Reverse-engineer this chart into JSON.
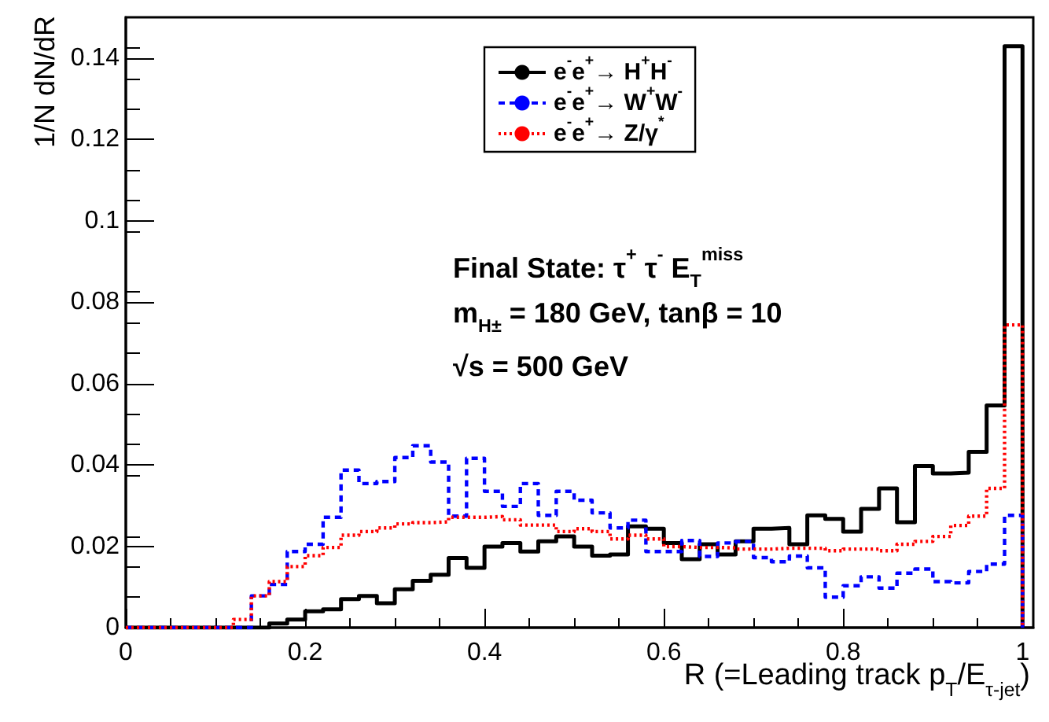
{
  "chart_data": {
    "type": "histogram",
    "xlabel": "R (=Leading track p$_{T}$/E$_{τ-jet}$)",
    "ylabel": "1/N dN/dR",
    "bins": [
      0,
      0.02,
      0.04,
      0.06,
      0.08,
      0.1,
      0.12,
      0.14,
      0.16,
      0.18,
      0.2,
      0.22,
      0.24,
      0.26,
      0.28,
      0.3,
      0.32,
      0.34,
      0.36,
      0.38,
      0.4,
      0.42,
      0.44,
      0.46,
      0.48,
      0.5,
      0.52,
      0.54,
      0.56,
      0.58,
      0.6,
      0.62,
      0.64,
      0.66,
      0.68,
      0.7,
      0.72,
      0.74,
      0.76,
      0.78,
      0.8,
      0.82,
      0.84,
      0.86,
      0.88,
      0.9,
      0.92,
      0.94,
      0.96,
      0.98,
      1
    ],
    "series": [
      {
        "name": "e$^{-}$e$^{+}$→ H$^{+}$H$^{-}$",
        "color": "#000000",
        "line_style": "solid",
        "values": [
          0,
          0,
          0,
          0,
          0,
          0,
          0,
          0,
          0.001,
          0.002,
          0.004,
          0.0045,
          0.007,
          0.0078,
          0.006,
          0.0094,
          0.0115,
          0.013,
          0.0171,
          0.0147,
          0.0199,
          0.0208,
          0.0187,
          0.0212,
          0.0224,
          0.0199,
          0.0177,
          0.018,
          0.0249,
          0.0243,
          0.0208,
          0.0168,
          0.0205,
          0.018,
          0.0212,
          0.0243,
          0.0245,
          0.0205,
          0.0276,
          0.0267,
          0.0236,
          0.0292,
          0.0342,
          0.0259,
          0.0397,
          0.0379,
          0.0381,
          0.0432,
          0.0546,
          0.1429
        ]
      },
      {
        "name": "e$^{-}$e$^{+}$→ W$^{+}$W$^{-}$",
        "color": "#0000ff",
        "line_style": "dashed",
        "values": [
          0,
          0,
          0,
          0,
          0,
          0,
          0,
          0.0078,
          0.0106,
          0.0187,
          0.0205,
          0.0271,
          0.0387,
          0.0354,
          0.0359,
          0.0418,
          0.0447,
          0.0407,
          0.0274,
          0.0416,
          0.0335,
          0.0298,
          0.0354,
          0.0276,
          0.0335,
          0.0313,
          0.0282,
          0.0245,
          0.0264,
          0.0187,
          0.0187,
          0.0214,
          0.0175,
          0.0208,
          0.0212,
          0.0172,
          0.0162,
          0.0176,
          0.0147,
          0.0075,
          0.0103,
          0.0125,
          0.0097,
          0.0134,
          0.0144,
          0.0113,
          0.011,
          0.0138,
          0.0156,
          0.0276
        ]
      },
      {
        "name": "e$^{-}$e$^{+}$→ Z/γ$^{*}$",
        "color": "#ff0000",
        "line_style": "dotted",
        "values": [
          0,
          0,
          0,
          0,
          0,
          0,
          0.002,
          0.0078,
          0.0113,
          0.015,
          0.0177,
          0.0197,
          0.0227,
          0.0236,
          0.0245,
          0.0255,
          0.0258,
          0.026,
          0.0271,
          0.0271,
          0.0273,
          0.0265,
          0.0252,
          0.0252,
          0.0236,
          0.0243,
          0.0236,
          0.0218,
          0.0227,
          0.0218,
          0.0199,
          0.0197,
          0.0197,
          0.0196,
          0.0193,
          0.0193,
          0.0195,
          0.0195,
          0.0195,
          0.0189,
          0.0193,
          0.0193,
          0.0189,
          0.0205,
          0.0212,
          0.0224,
          0.0251,
          0.0274,
          0.0342,
          0.0744
        ]
      }
    ],
    "annotations": [
      "Final State: τ$^{+}$ τ$^{-}$ E$_{T}$$^{miss}$",
      "m$_{H±}$ = 180 GeV, tanβ = 10",
      "√s = 500 GeV"
    ],
    "xlim": [
      0,
      1.012
    ],
    "xticks": [
      0,
      0.2,
      0.4,
      0.6,
      0.8,
      1
    ],
    "ylim": [
      0,
      0.15
    ],
    "yticks": [
      0,
      0.02,
      0.04,
      0.06,
      0.08,
      0.1,
      0.12,
      0.14
    ],
    "legend": "top",
    "grid": false
  }
}
